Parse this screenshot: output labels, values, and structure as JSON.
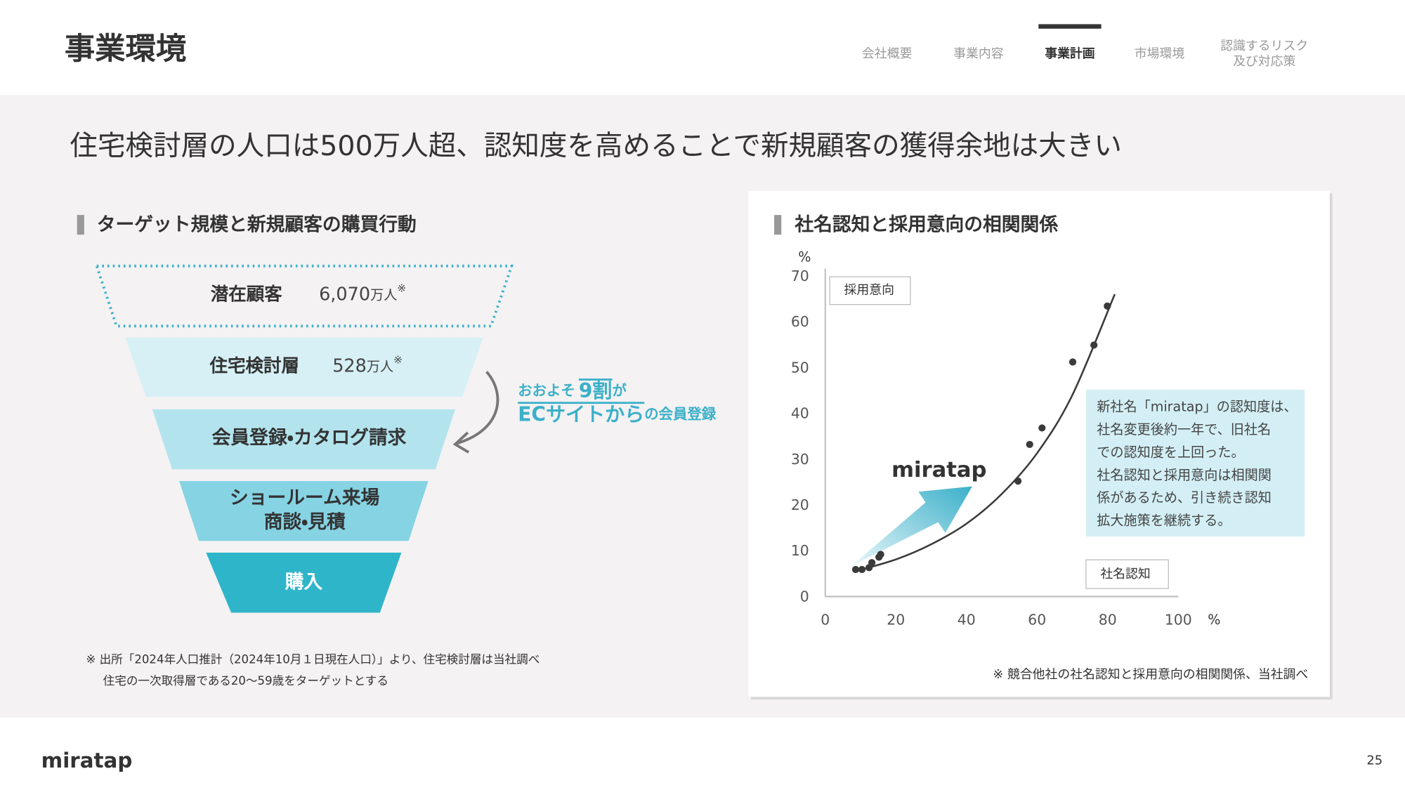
{
  "header": {
    "title": "事業環境",
    "active": 2,
    "nav": [
      {
        "lines": [
          "会社概要"
        ]
      },
      {
        "lines": [
          "事業内容"
        ]
      },
      {
        "lines": [
          "事業計画"
        ]
      },
      {
        "lines": [
          "市場環境"
        ]
      },
      {
        "lines": [
          "認識するリスク",
          "及び対応策"
        ]
      }
    ]
  },
  "headline": "住宅検討層の人口は500万人超、認知度を高めることで新規顧客の獲得余地は大きい",
  "funnel": {
    "title": "ターゲット規模と新規顧客の購買行動",
    "stages": [
      {
        "lines": [
          "潜在顧客"
        ],
        "value": "6,070",
        "unit": "万人",
        "mark": "※"
      },
      {
        "lines": [
          "住宅検討層"
        ],
        "value": "528",
        "unit": "万人",
        "mark": "※"
      },
      {
        "lines": [
          "会員登録・カタログ請求"
        ]
      },
      {
        "lines": [
          "ショールーム来場",
          "商談・見積"
        ]
      },
      {
        "lines": [
          "購入"
        ]
      }
    ],
    "callout": [
      [
        "おおよそ",
        "9割",
        "が"
      ],
      [
        "ECサイトから",
        "の会員登録"
      ]
    ],
    "footnote": [
      "※ 出所「2024年人口推計（2024年10月１日現在人口）」より、住宅検討層は当社調べ",
      "住宅の一次取得層である20〜59歳をターゲットとする"
    ]
  },
  "chart_data": {
    "type": "scatter",
    "title": "社名認知と採用意向の相関関係",
    "x": [
      8.6,
      10.4,
      12.4,
      13.2,
      15.2,
      15.7,
      54.6,
      57.9,
      61.4,
      70.1,
      76.1,
      79.9
    ],
    "values": [
      5.9,
      5.9,
      6.3,
      7.4,
      8.6,
      9.2,
      25.2,
      33.2,
      36.8,
      51.2,
      54.9,
      63.4
    ],
    "color": "#3a3a3a",
    "trend": {
      "x": [
        8,
        20,
        30,
        40,
        50,
        60,
        70,
        82
      ],
      "values": [
        5.4,
        8.1,
        11.4,
        15.9,
        22.4,
        31.3,
        44.0,
        66.0
      ],
      "color": "#3a3a3a"
    },
    "xlim": [
      0,
      100
    ],
    "xticks": [
      0,
      20,
      40,
      60,
      80,
      100
    ],
    "ylim": [
      0,
      70
    ],
    "yticks": [
      0,
      10,
      20,
      30,
      40,
      50,
      60,
      70
    ],
    "grid": false,
    "x_unit": "%",
    "y_unit": "%",
    "x_label": "社名認知",
    "y_label": "採用意向",
    "logo": "miratap",
    "note_lines": [
      "新社名「miratap」の認知度は、",
      "社名変更後約一年で、旧社名",
      "での認知度を上回った。",
      "社名認知と採用意向は相関関",
      "係があるため、引き続き認知",
      "拡大施策を継続する。"
    ],
    "source": "※ 競合他社の社名認知と採用意向の相関関係、当社調べ"
  },
  "footer": {
    "logo": "miratap",
    "page": 25
  }
}
